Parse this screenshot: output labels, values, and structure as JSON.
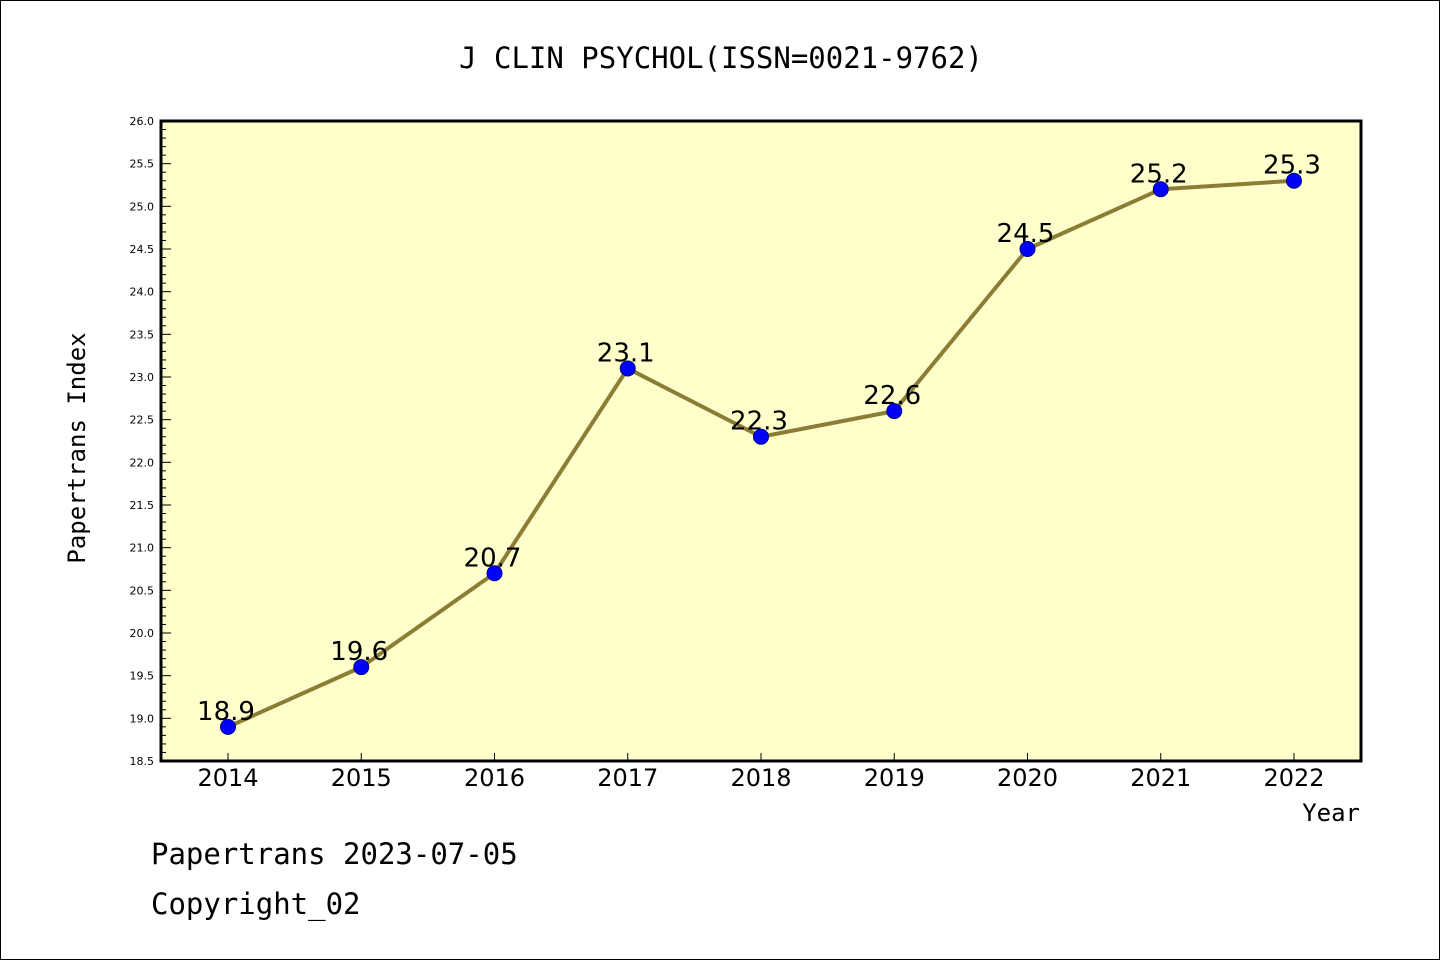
{
  "footer": {
    "date_line": "Papertrans 2023-07-05",
    "copyright_line": "Copyright_02"
  },
  "colors": {
    "plot_background": "#ffffcc",
    "line": "#8b7d35",
    "marker_fill": "#0000ff",
    "marker_stroke": "#00008b",
    "axis": "#000000"
  },
  "chart_data": {
    "type": "line",
    "title": "J CLIN PSYCHOL(ISSN=0021-9762)",
    "xlabel": "Year",
    "ylabel": "Papertrans Index",
    "categories": [
      "2014",
      "2015",
      "2016",
      "2017",
      "2018",
      "2019",
      "2020",
      "2021",
      "2022"
    ],
    "series": [
      {
        "values": [
          18.9,
          19.6,
          20.7,
          23.1,
          22.3,
          22.6,
          24.5,
          25.2,
          25.3
        ],
        "data_labels": [
          "18.9",
          "19.6",
          "20.7",
          "23.1",
          "22.3",
          "22.6",
          "24.5",
          "25.2",
          "25.3"
        ]
      }
    ],
    "ylim": [
      18.5,
      26.0
    ],
    "ytick_labels": [
      "18.5",
      "19.0",
      "19.5",
      "20.0",
      "20.5",
      "21.0",
      "21.5",
      "22.0",
      "22.5",
      "23.0",
      "23.5",
      "24.0",
      "24.5",
      "25.0",
      "25.5",
      "26.0"
    ],
    "grid": false,
    "legend": "none"
  }
}
